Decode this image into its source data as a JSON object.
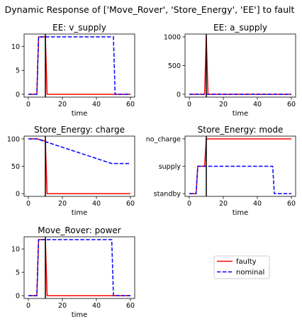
{
  "figure": {
    "suptitle": "Dynamic Response of ['Move_Rover', 'Store_Energy', 'EE'] to fault",
    "fault_time": 10
  },
  "legend": {
    "faulty": "faulty",
    "nominal": "nominal",
    "colors": {
      "faulty": "#ff0000",
      "nominal": "#0000ff"
    },
    "placement": "empty bottom-right panel"
  },
  "chart_data": [
    {
      "id": "ee_v_supply",
      "type": "line",
      "title": "EE: v_supply",
      "xlabel": "time",
      "xlim": [
        -2.5,
        62.5
      ],
      "ylim": [
        -0.6,
        12.6
      ],
      "xticks": [
        0,
        20,
        40,
        60
      ],
      "yticks": [
        0,
        5,
        10
      ],
      "categorical_y": false,
      "series": [
        {
          "name": "faulty",
          "style": "solid",
          "x": [
            0,
            5,
            6,
            10,
            11,
            60
          ],
          "y": [
            0,
            0,
            12,
            12,
            0,
            0
          ]
        },
        {
          "name": "nominal",
          "style": "dashed",
          "x": [
            0,
            5,
            6,
            50,
            51,
            60
          ],
          "y": [
            0,
            0,
            12,
            12,
            0,
            0
          ]
        }
      ]
    },
    {
      "id": "ee_a_supply",
      "type": "line",
      "title": "EE: a_supply",
      "xlabel": "time",
      "xlim": [
        -2.5,
        62.5
      ],
      "ylim": [
        -50,
        1050
      ],
      "xticks": [
        0,
        20,
        40,
        60
      ],
      "yticks": [
        0,
        500,
        1000
      ],
      "categorical_y": false,
      "series": [
        {
          "name": "faulty",
          "style": "solid",
          "x": [
            0,
            9,
            10,
            11,
            60
          ],
          "y": [
            0,
            0,
            1000,
            0,
            0
          ]
        },
        {
          "name": "nominal",
          "style": "dashed",
          "x": [
            0,
            60
          ],
          "y": [
            0,
            0
          ]
        }
      ]
    },
    {
      "id": "store_energy_charge",
      "type": "line",
      "title": "Store_Energy: charge",
      "xlabel": "time",
      "xlim": [
        -2.5,
        62.5
      ],
      "ylim": [
        -5,
        105
      ],
      "xticks": [
        0,
        20,
        40,
        60
      ],
      "yticks": [
        0,
        50,
        100
      ],
      "categorical_y": false,
      "series": [
        {
          "name": "faulty",
          "style": "solid",
          "x": [
            0,
            5,
            10,
            11,
            60
          ],
          "y": [
            100,
            100,
            96,
            0,
            0
          ]
        },
        {
          "name": "nominal",
          "style": "dashed",
          "x": [
            0,
            5,
            49,
            50,
            60
          ],
          "y": [
            100,
            100,
            55,
            55,
            55
          ]
        }
      ]
    },
    {
      "id": "store_energy_mode",
      "type": "line",
      "title": "Store_Energy: mode",
      "xlabel": "time",
      "xlim": [
        -2.5,
        62.5
      ],
      "ylim": [
        -0.1,
        2.1
      ],
      "xticks": [
        0,
        20,
        40,
        60
      ],
      "yticks": [
        0,
        1,
        2
      ],
      "ytick_labels": [
        "standby",
        "supply",
        "no_charge"
      ],
      "categorical_y": true,
      "series": [
        {
          "name": "faulty",
          "style": "solid",
          "x": [
            0,
            4,
            5,
            9,
            10,
            60
          ],
          "y": [
            0,
            0,
            1,
            1,
            2,
            2
          ]
        },
        {
          "name": "nominal",
          "style": "dashed",
          "x": [
            0,
            4,
            5,
            49,
            50,
            60
          ],
          "y": [
            0,
            0,
            1,
            1,
            0,
            0
          ]
        }
      ]
    },
    {
      "id": "move_rover_power",
      "type": "line",
      "title": "Move_Rover: power",
      "xlabel": "time",
      "xlim": [
        -2.5,
        62.5
      ],
      "ylim": [
        -0.6,
        12.6
      ],
      "xticks": [
        0,
        20,
        40,
        60
      ],
      "yticks": [
        0,
        5,
        10
      ],
      "categorical_y": false,
      "series": [
        {
          "name": "faulty",
          "style": "solid",
          "x": [
            0,
            5,
            6,
            10,
            11,
            60
          ],
          "y": [
            0,
            0,
            12,
            12,
            0,
            0
          ]
        },
        {
          "name": "nominal",
          "style": "dashed",
          "x": [
            0,
            5,
            6,
            49,
            50,
            60
          ],
          "y": [
            0,
            0,
            12,
            12,
            0,
            0
          ]
        }
      ]
    }
  ]
}
